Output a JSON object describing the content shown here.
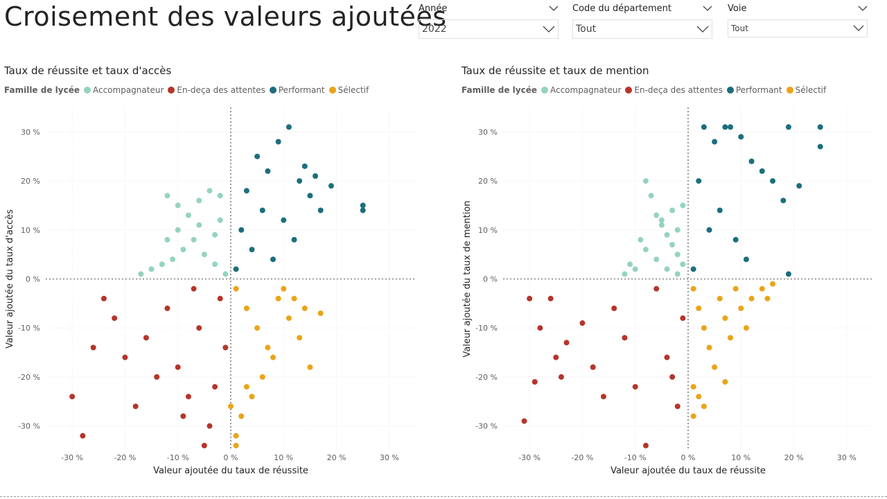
{
  "page_title": "Croisement des valeurs ajoutées",
  "slicers": [
    {
      "label": "Année",
      "value": "2022"
    },
    {
      "label": "Code du département",
      "value": "Tout"
    },
    {
      "label": "Voie",
      "value": "Tout"
    }
  ],
  "legend_title": "Famille de lycée",
  "categories": [
    {
      "name": "Accompagnateur",
      "color": "#95d3c1"
    },
    {
      "name": "En-deça des attentes",
      "color": "#b5352a"
    },
    {
      "name": "Performant",
      "color": "#1c6e7d"
    },
    {
      "name": "Sélectif",
      "color": "#eaa419"
    }
  ],
  "chart_data": [
    {
      "type": "scatter",
      "title": "Taux de réussite et taux d'accès",
      "xlabel": "Valeur ajoutée du taux de réussite",
      "ylabel": "Valeur ajoutée du taux d'accès",
      "xlim": [
        -35,
        35
      ],
      "ylim": [
        -35,
        35
      ],
      "x_ticks": [
        "-30 %",
        "-20 %",
        "-10 %",
        "0 %",
        "10 %",
        "20 %",
        "30 %"
      ],
      "y_ticks": [
        "30 %",
        "20 %",
        "10 %",
        "0 %",
        "-10 %",
        "-20 %",
        "-30 %"
      ],
      "series": [
        {
          "name": "Accompagnateur",
          "points": [
            [
              -12,
              17
            ],
            [
              -10,
              15
            ],
            [
              -8,
              13
            ],
            [
              -6,
              16
            ],
            [
              -4,
              18
            ],
            [
              -2,
              12
            ],
            [
              -3,
              9
            ],
            [
              -7,
              8
            ],
            [
              -9,
              6
            ],
            [
              -11,
              4
            ],
            [
              -13,
              3
            ],
            [
              -15,
              2
            ],
            [
              -17,
              1
            ],
            [
              -5,
              5
            ],
            [
              -3,
              3
            ],
            [
              -1,
              1
            ],
            [
              -2,
              17
            ],
            [
              -6,
              11
            ],
            [
              -10,
              10
            ],
            [
              -12,
              8
            ]
          ]
        },
        {
          "name": "En-deça des attentes",
          "points": [
            [
              -30,
              -24
            ],
            [
              -28,
              -32
            ],
            [
              -26,
              -14
            ],
            [
              -24,
              -4
            ],
            [
              -22,
              -8
            ],
            [
              -20,
              -16
            ],
            [
              -18,
              -26
            ],
            [
              -16,
              -12
            ],
            [
              -14,
              -20
            ],
            [
              -12,
              -6
            ],
            [
              -10,
              -18
            ],
            [
              -8,
              -24
            ],
            [
              -6,
              -10
            ],
            [
              -4,
              -30
            ],
            [
              -2,
              -4
            ],
            [
              -1,
              -14
            ],
            [
              -3,
              -22
            ],
            [
              -5,
              -34
            ],
            [
              -7,
              -2
            ],
            [
              -9,
              -28
            ]
          ]
        },
        {
          "name": "Performant",
          "points": [
            [
              1,
              2
            ],
            [
              3,
              18
            ],
            [
              5,
              25
            ],
            [
              7,
              22
            ],
            [
              9,
              28
            ],
            [
              11,
              31
            ],
            [
              13,
              20
            ],
            [
              15,
              17
            ],
            [
              17,
              14
            ],
            [
              19,
              19
            ],
            [
              25,
              15
            ],
            [
              25,
              14
            ],
            [
              2,
              10
            ],
            [
              4,
              6
            ],
            [
              6,
              14
            ],
            [
              8,
              4
            ],
            [
              10,
              12
            ],
            [
              12,
              8
            ],
            [
              14,
              23
            ],
            [
              16,
              21
            ]
          ]
        },
        {
          "name": "Sélectif",
          "points": [
            [
              1,
              -2
            ],
            [
              3,
              -6
            ],
            [
              5,
              -10
            ],
            [
              7,
              -14
            ],
            [
              9,
              -4
            ],
            [
              11,
              -8
            ],
            [
              13,
              -12
            ],
            [
              15,
              -18
            ],
            [
              17,
              -7
            ],
            [
              1,
              -32
            ],
            [
              2,
              -28
            ],
            [
              4,
              -24
            ],
            [
              6,
              -20
            ],
            [
              8,
              -16
            ],
            [
              10,
              -2
            ],
            [
              12,
              -4
            ],
            [
              14,
              -6
            ],
            [
              0,
              -26
            ],
            [
              1,
              -34
            ],
            [
              3,
              -22
            ]
          ]
        }
      ]
    },
    {
      "type": "scatter",
      "title": "Taux de réussite et taux de mention",
      "xlabel": "Valeur ajoutée du taux de réussite",
      "ylabel": "Valeur ajoutée du taux de mention",
      "xlim": [
        -35,
        35
      ],
      "ylim": [
        -35,
        35
      ],
      "x_ticks": [
        "-30 %",
        "-20 %",
        "-10 %",
        "0 %",
        "10 %",
        "20 %",
        "30 %"
      ],
      "y_ticks": [
        "30 %",
        "20 %",
        "10 %",
        "0 %",
        "-10 %",
        "-20 %",
        "-30 %"
      ],
      "series": [
        {
          "name": "Accompagnateur",
          "points": [
            [
              -8,
              20
            ],
            [
              -7,
              17
            ],
            [
              -6,
              13
            ],
            [
              -5,
              11
            ],
            [
              -4,
              9
            ],
            [
              -3,
              7
            ],
            [
              -2,
              5
            ],
            [
              -1,
              3
            ],
            [
              -10,
              2
            ],
            [
              -12,
              1
            ],
            [
              -8,
              6
            ],
            [
              -6,
              4
            ],
            [
              -4,
              2
            ],
            [
              -2,
              1
            ],
            [
              -1,
              15
            ],
            [
              -3,
              14
            ],
            [
              -9,
              8
            ],
            [
              -11,
              3
            ],
            [
              -5,
              12
            ],
            [
              -2,
              10
            ]
          ]
        },
        {
          "name": "En-deça des attentes",
          "points": [
            [
              -31,
              -29
            ],
            [
              -30,
              -4
            ],
            [
              -29,
              -21
            ],
            [
              -28,
              -10
            ],
            [
              -26,
              -4
            ],
            [
              -25,
              -16
            ],
            [
              -24,
              -20
            ],
            [
              -23,
              -13
            ],
            [
              -20,
              -9
            ],
            [
              -18,
              -18
            ],
            [
              -16,
              -24
            ],
            [
              -14,
              -6
            ],
            [
              -12,
              -12
            ],
            [
              -10,
              -22
            ],
            [
              -8,
              -34
            ],
            [
              -6,
              -2
            ],
            [
              -4,
              -16
            ],
            [
              -2,
              -26
            ],
            [
              -1,
              -8
            ],
            [
              -3,
              -20
            ]
          ]
        },
        {
          "name": "Performant",
          "points": [
            [
              1,
              2
            ],
            [
              2,
              20
            ],
            [
              3,
              31
            ],
            [
              5,
              28
            ],
            [
              7,
              31
            ],
            [
              8,
              31
            ],
            [
              10,
              29
            ],
            [
              12,
              24
            ],
            [
              14,
              22
            ],
            [
              16,
              20
            ],
            [
              18,
              16
            ],
            [
              19,
              31
            ],
            [
              21,
              19
            ],
            [
              25,
              31
            ],
            [
              25,
              27
            ],
            [
              4,
              10
            ],
            [
              6,
              14
            ],
            [
              9,
              8
            ],
            [
              11,
              4
            ],
            [
              19,
              1
            ]
          ]
        },
        {
          "name": "Sélectif",
          "points": [
            [
              1,
              -2
            ],
            [
              2,
              -6
            ],
            [
              3,
              -10
            ],
            [
              4,
              -14
            ],
            [
              5,
              -18
            ],
            [
              6,
              -4
            ],
            [
              7,
              -8
            ],
            [
              8,
              -12
            ],
            [
              9,
              -2
            ],
            [
              10,
              -6
            ],
            [
              11,
              -10
            ],
            [
              12,
              -4
            ],
            [
              14,
              -2
            ],
            [
              15,
              -4
            ],
            [
              16,
              -1
            ],
            [
              1,
              -22
            ],
            [
              1,
              -28
            ],
            [
              2,
              -24
            ],
            [
              3,
              -26
            ],
            [
              7,
              -21
            ]
          ]
        }
      ]
    }
  ]
}
